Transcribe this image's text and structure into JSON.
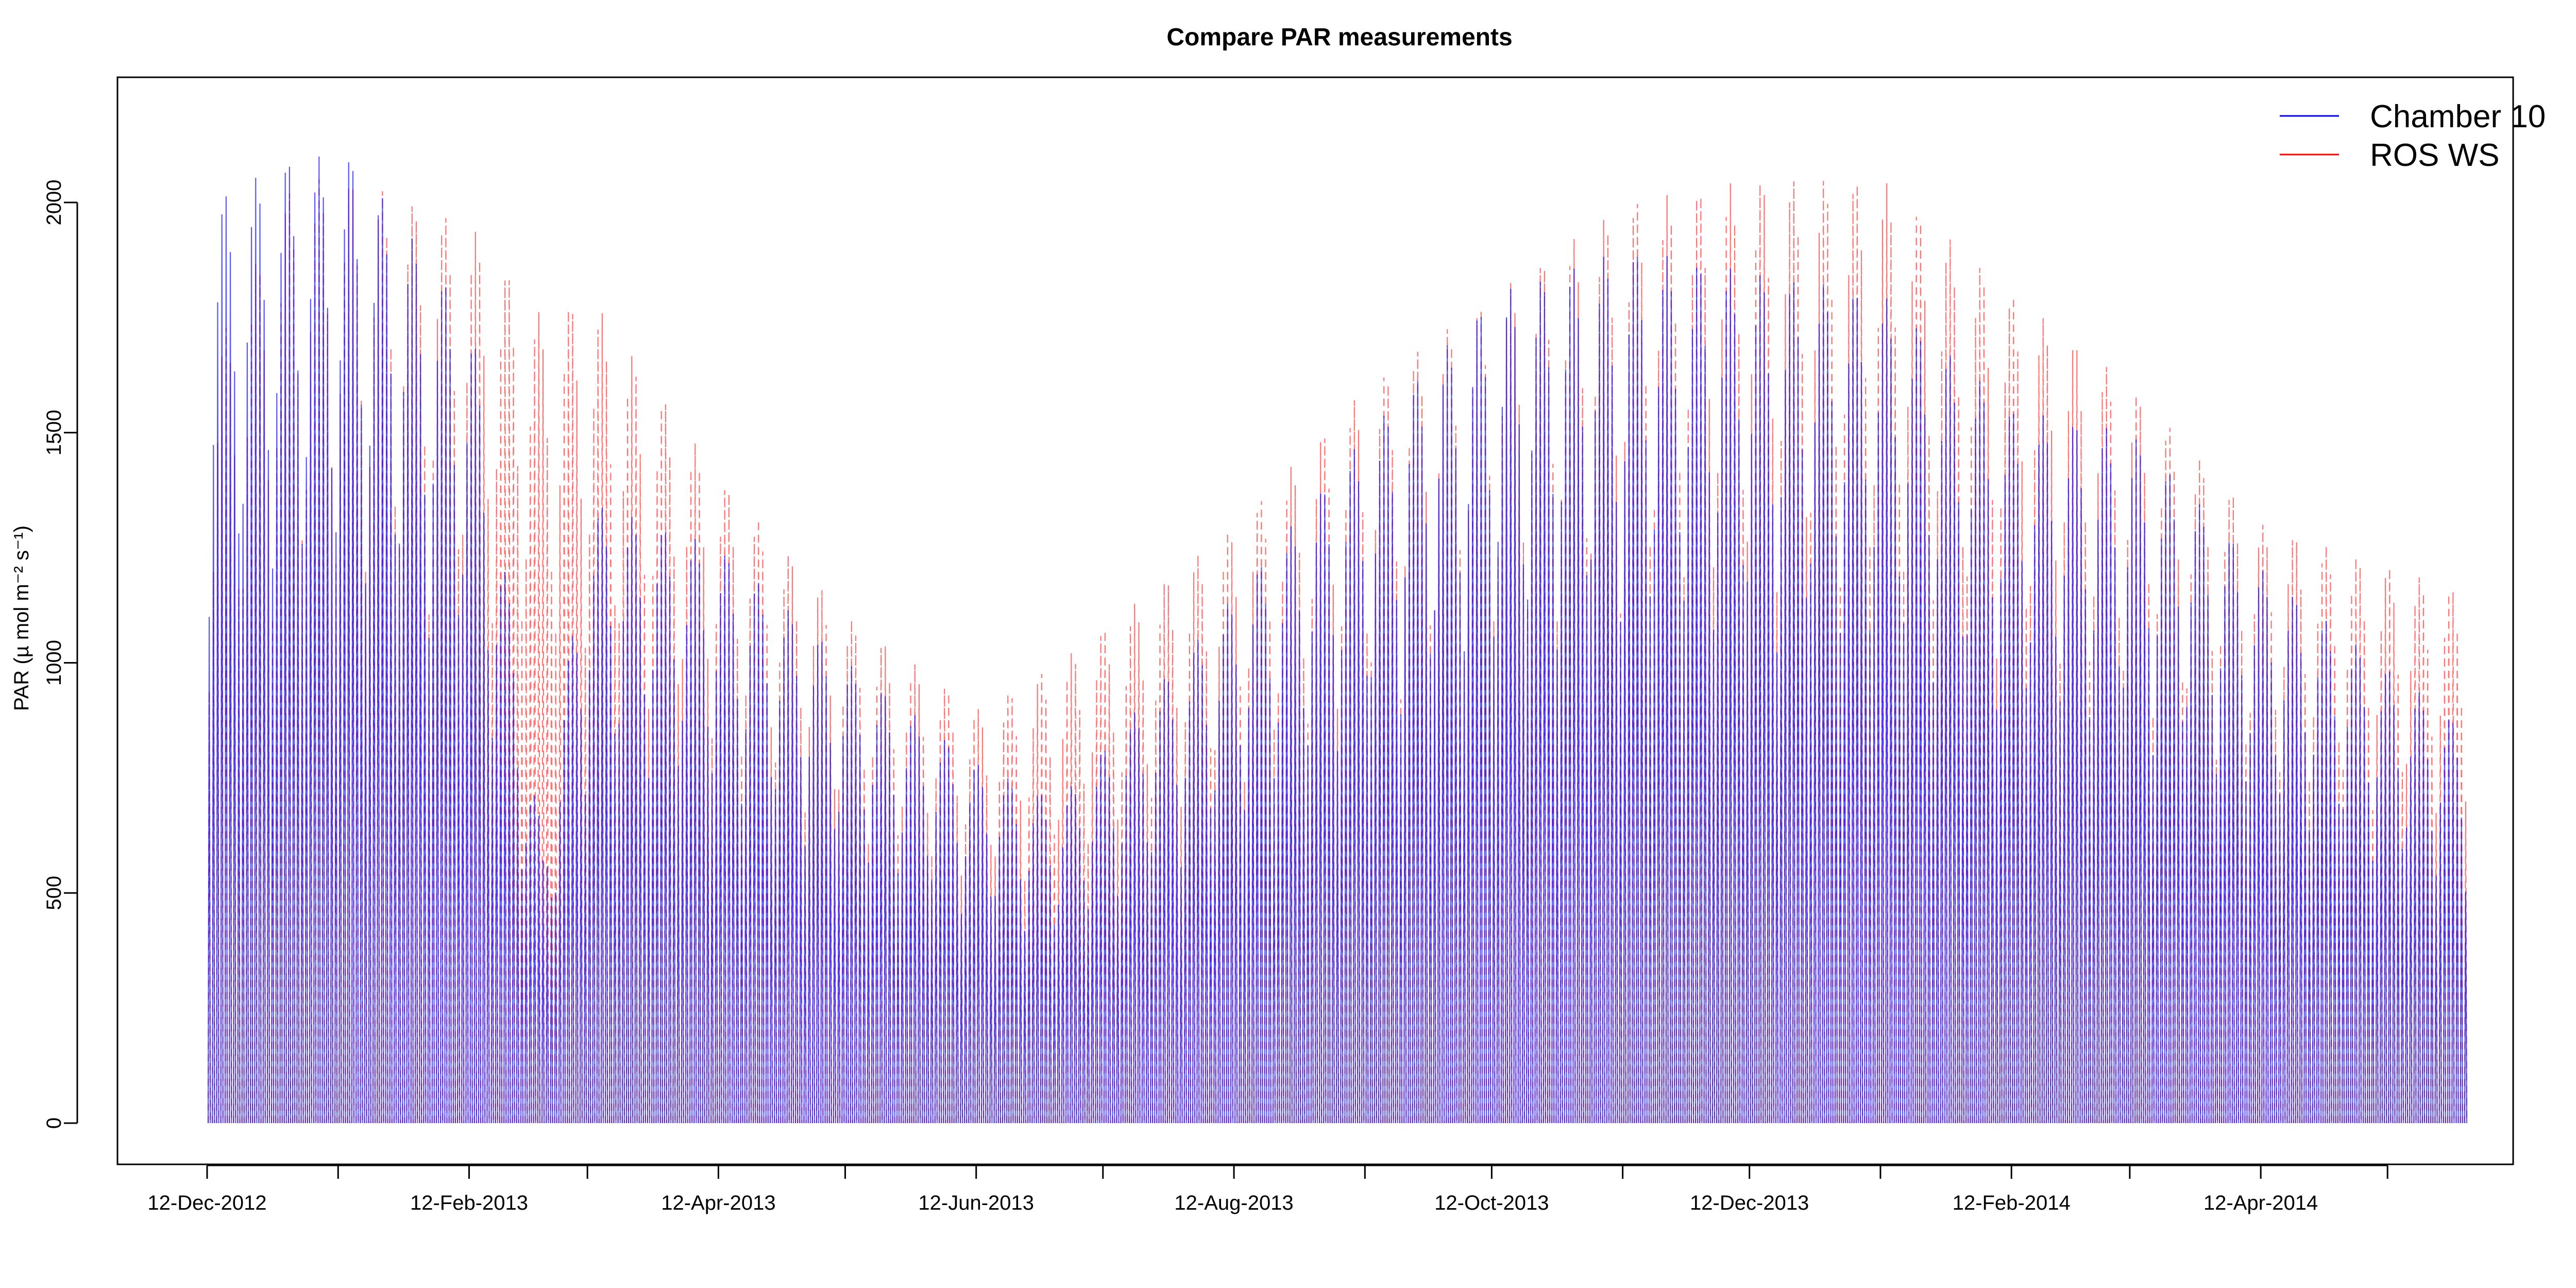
{
  "chart_data": {
    "type": "line",
    "title": "Compare PAR measurements",
    "xlabel": "",
    "ylabel": "PAR (µ mol m⁻² s⁻¹)",
    "ylim": [
      0,
      2200
    ],
    "y_ticks": [
      0,
      500,
      1000,
      1500,
      2000
    ],
    "x_tick_labels": [
      "12-Dec-2012",
      "12-Feb-2013",
      "12-Apr-2013",
      "12-Jun-2013",
      "12-Aug-2013",
      "12-Oct-2013",
      "12-Dec-2013",
      "12-Feb-2014",
      "12-Apr-2014"
    ],
    "x_start": "2012-12-12",
    "x_end": "2014-05-31",
    "grid": false,
    "legend_position": "top-right",
    "series": [
      {
        "name": "Chamber 10",
        "color": "#0000ff",
        "line_style": "solid",
        "daily_peak_envelope": [
          {
            "date": "2012-12-12",
            "value": 2000
          },
          {
            "date": "2013-01-01",
            "value": 2100
          },
          {
            "date": "2013-01-15",
            "value": 2100
          },
          {
            "date": "2013-02-12",
            "value": 1750
          },
          {
            "date": "2013-03-01",
            "value": 600
          },
          {
            "date": "2013-03-12",
            "value": 1350
          },
          {
            "date": "2013-04-12",
            "value": 1250
          },
          {
            "date": "2013-05-12",
            "value": 1000
          },
          {
            "date": "2013-06-12",
            "value": 780
          },
          {
            "date": "2013-07-01",
            "value": 700
          },
          {
            "date": "2013-08-12",
            "value": 1150
          },
          {
            "date": "2013-09-12",
            "value": 1500
          },
          {
            "date": "2013-10-12",
            "value": 1800
          },
          {
            "date": "2013-11-12",
            "value": 1900
          },
          {
            "date": "2013-12-12",
            "value": 1850
          },
          {
            "date": "2014-01-12",
            "value": 1800
          },
          {
            "date": "2014-02-12",
            "value": 1550
          },
          {
            "date": "2014-03-12",
            "value": 1500
          },
          {
            "date": "2014-04-12",
            "value": 1200
          },
          {
            "date": "2014-05-31",
            "value": 850
          }
        ]
      },
      {
        "name": "ROS WS",
        "color": "#ff0000",
        "line_style": "dashed",
        "daily_peak_envelope": [
          {
            "date": "2012-12-12",
            "value": 1650
          },
          {
            "date": "2013-01-01",
            "value": 2050
          },
          {
            "date": "2013-01-15",
            "value": 2050
          },
          {
            "date": "2013-02-12",
            "value": 1950
          },
          {
            "date": "2013-03-01",
            "value": 1750
          },
          {
            "date": "2013-03-12",
            "value": 1800
          },
          {
            "date": "2013-04-12",
            "value": 1400
          },
          {
            "date": "2013-05-12",
            "value": 1100
          },
          {
            "date": "2013-06-12",
            "value": 900
          },
          {
            "date": "2013-07-01",
            "value": 1000
          },
          {
            "date": "2013-08-12",
            "value": 1300
          },
          {
            "date": "2013-09-12",
            "value": 1600
          },
          {
            "date": "2013-10-12",
            "value": 1800
          },
          {
            "date": "2013-11-12",
            "value": 2000
          },
          {
            "date": "2013-12-12",
            "value": 2050
          },
          {
            "date": "2014-01-12",
            "value": 2050
          },
          {
            "date": "2014-02-12",
            "value": 1800
          },
          {
            "date": "2014-03-12",
            "value": 1600
          },
          {
            "date": "2014-04-12",
            "value": 1300
          },
          {
            "date": "2014-05-31",
            "value": 1150
          }
        ]
      }
    ]
  }
}
